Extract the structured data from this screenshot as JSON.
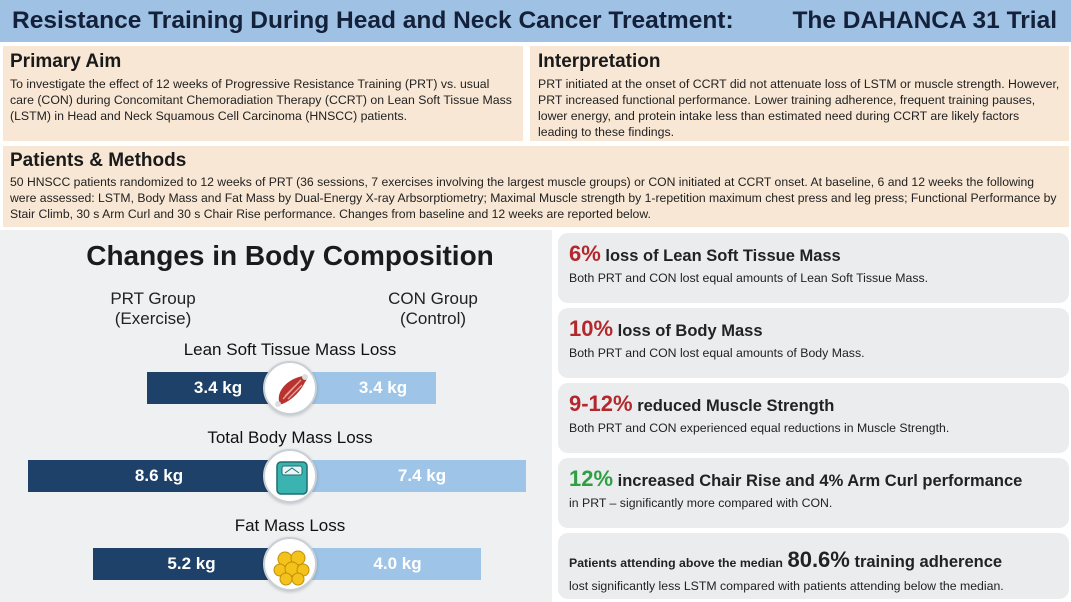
{
  "header": {
    "title_left": "Resistance Training During Head and Neck Cancer Treatment:",
    "title_right": "The DAHANCA 31 Trial"
  },
  "aim": {
    "heading": "Primary Aim",
    "text": "To investigate the effect of 12 weeks of Progressive Resistance Training (PRT) vs. usual care (CON) during Concomitant Chemoradiation Therapy (CCRT) on Lean Soft Tissue Mass (LSTM) in Head and Neck Squamous Cell Carcinoma (HNSCC) patients."
  },
  "interpretation": {
    "heading": "Interpretation",
    "text": "PRT initiated at the onset of CCRT did not attenuate loss of LSTM or muscle strength. However, PRT increased functional performance. Lower training adherence, frequent training pauses, lower energy, and protein intake less than estimated need during CCRT are likely factors leading to these findings."
  },
  "methods": {
    "heading": "Patients & Methods",
    "text": "50 HNSCC patients randomized to 12 weeks of PRT (36 sessions, 7 exercises involving the largest muscle groups) or CON initiated at CCRT onset. At baseline, 6 and 12 weeks the following were assessed: LSTM, Body Mass and Fat Mass by Dual-Energy X-ray Arbsorptiometry; Maximal Muscle strength by 1-repetition maximum chest press and leg press; Functional Performance by Stair Climb, 30 s Arm Curl and 30 s Chair Rise performance.  Changes from baseline and 12 weeks are reported below."
  },
  "body_composition": {
    "title": "Changes in Body Composition",
    "prt_group": "PRT Group",
    "prt_sub": "(Exercise)",
    "con_group": "CON Group",
    "con_sub": "(Control)",
    "rows": [
      {
        "label": "Lean Soft Tissue Mass Loss",
        "prt": "3.4 kg",
        "con": "3.4 kg",
        "icon": "muscle-icon",
        "prt_kg": 3.4,
        "con_kg": 3.4
      },
      {
        "label": "Total Body Mass Loss",
        "prt": "8.6 kg",
        "con": "7.4 kg",
        "icon": "scale-icon",
        "prt_kg": 8.6,
        "con_kg": 7.4
      },
      {
        "label": "Fat Mass Loss",
        "prt": "5.2 kg",
        "con": "4.0 kg",
        "icon": "fat-cells-icon",
        "prt_kg": 5.2,
        "con_kg": 4.0
      }
    ],
    "colors": {
      "prt": "#1d4168",
      "con": "#9ec5e7"
    }
  },
  "findings": [
    {
      "big": "6%",
      "rest": "loss of Lean Soft Tissue Mass",
      "sub": "Both PRT and CON lost equal amounts of Lean Soft Tissue Mass.",
      "color": "#b3282d"
    },
    {
      "big": "10%",
      "rest": "loss of Body Mass",
      "sub": "Both PRT and CON lost equal amounts of Body Mass.",
      "color": "#b3282d"
    },
    {
      "big": "9-12%",
      "rest": "reduced Muscle Strength",
      "sub": "Both PRT and CON experienced equal reductions in Muscle Strength.",
      "color": "#b3282d"
    },
    {
      "big": "12%",
      "rest": "increased Chair Rise and 4% Arm Curl performance",
      "sub": "in PRT – significantly more compared with CON.",
      "color": "#2ea043"
    },
    {
      "pre": "Patients attending above the median",
      "big": "80.6%",
      "rest": "training adherence",
      "sub": "lost significantly less LSTM compared with patients attending below the median."
    }
  ]
}
